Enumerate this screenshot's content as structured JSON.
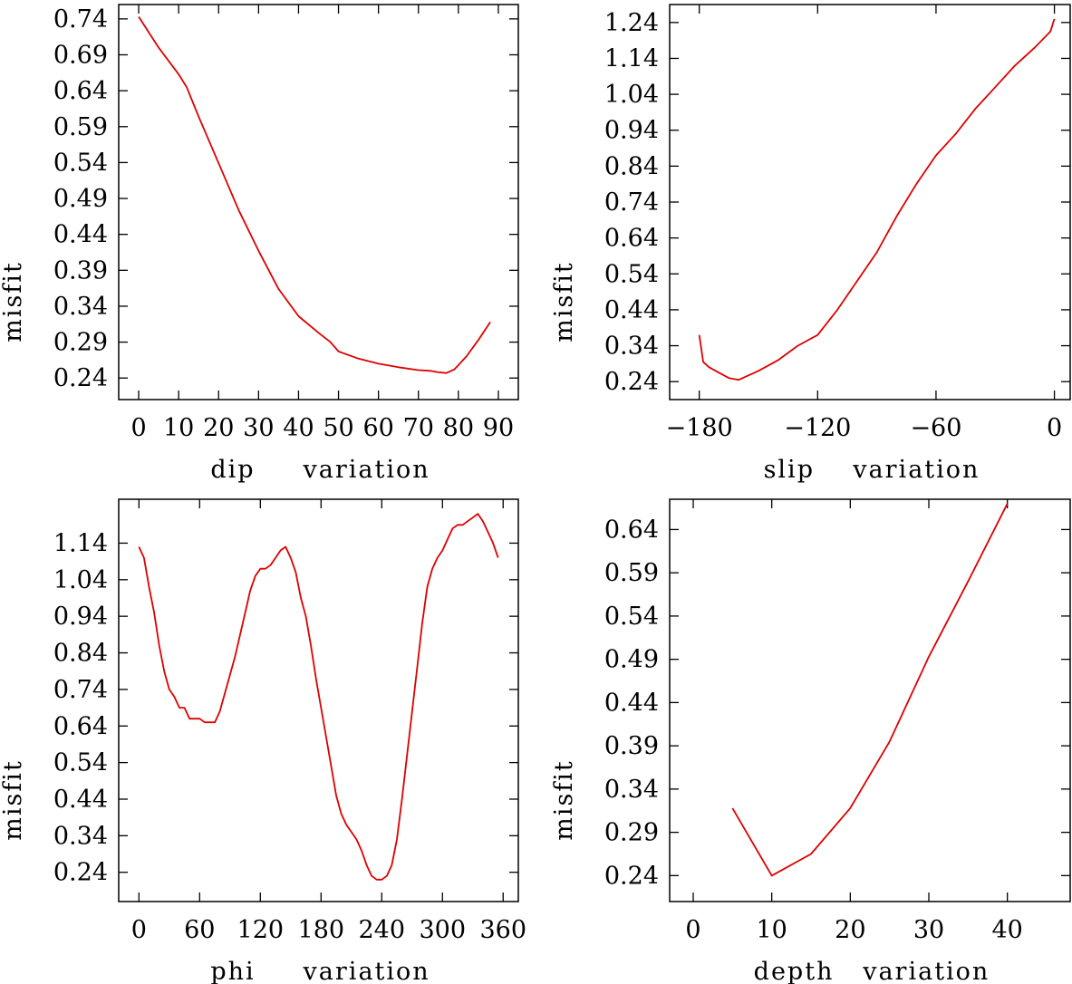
{
  "chart_data": [
    {
      "type": "line",
      "xlabel": "dip     variation",
      "ylabel": "misfit",
      "xlim": [
        -5,
        95
      ],
      "ylim": [
        0.21,
        0.76
      ],
      "xticks": [
        0,
        10,
        20,
        30,
        40,
        50,
        60,
        70,
        80,
        90
      ],
      "yticks": [
        0.24,
        0.29,
        0.34,
        0.39,
        0.44,
        0.49,
        0.54,
        0.59,
        0.64,
        0.69,
        0.74
      ],
      "color": "#dd0000",
      "x": [
        0,
        5,
        10,
        12,
        15,
        20,
        25,
        30,
        35,
        40,
        45,
        48,
        50,
        55,
        60,
        65,
        70,
        73,
        75,
        77,
        79,
        82,
        85,
        88
      ],
      "y": [
        0.743,
        0.7,
        0.663,
        0.645,
        0.604,
        0.539,
        0.474,
        0.417,
        0.364,
        0.326,
        0.303,
        0.29,
        0.277,
        0.267,
        0.26,
        0.255,
        0.251,
        0.25,
        0.248,
        0.247,
        0.252,
        0.27,
        0.293,
        0.318
      ]
    },
    {
      "type": "line",
      "xlabel": "slip    variation",
      "ylabel": "misfit",
      "xlim": [
        -195,
        8
      ],
      "ylim": [
        0.19,
        1.29
      ],
      "xticks": [
        -180,
        -120,
        -60,
        0
      ],
      "xtick_labels": [
        "−180",
        "−120",
        "−60",
        "0"
      ],
      "yticks": [
        0.24,
        0.34,
        0.44,
        0.54,
        0.64,
        0.74,
        0.84,
        0.94,
        1.04,
        1.14,
        1.24
      ],
      "color": "#dd0000",
      "x": [
        -180,
        -178,
        -175,
        -170,
        -165,
        -160,
        -150,
        -140,
        -130,
        -120,
        -110,
        -100,
        -90,
        -80,
        -70,
        -60,
        -50,
        -40,
        -30,
        -20,
        -10,
        -2,
        0
      ],
      "y": [
        0.37,
        0.295,
        0.28,
        0.265,
        0.25,
        0.245,
        0.27,
        0.3,
        0.34,
        0.37,
        0.44,
        0.52,
        0.6,
        0.7,
        0.79,
        0.87,
        0.93,
        1.0,
        1.06,
        1.12,
        1.17,
        1.215,
        1.25
      ]
    },
    {
      "type": "line",
      "xlabel": "phi     variation",
      "ylabel": "misfit",
      "xlim": [
        -20,
        375
      ],
      "ylim": [
        0.16,
        1.26
      ],
      "xticks": [
        0,
        60,
        120,
        180,
        240,
        300,
        360
      ],
      "yticks": [
        0.24,
        0.34,
        0.44,
        0.54,
        0.64,
        0.74,
        0.84,
        0.94,
        1.04,
        1.14
      ],
      "color": "#dd0000",
      "x": [
        0,
        5,
        10,
        15,
        20,
        25,
        30,
        35,
        40,
        45,
        50,
        55,
        60,
        65,
        70,
        75,
        80,
        85,
        90,
        95,
        100,
        105,
        110,
        115,
        120,
        125,
        130,
        135,
        140,
        145,
        150,
        155,
        160,
        165,
        170,
        175,
        180,
        185,
        190,
        195,
        200,
        205,
        210,
        215,
        220,
        225,
        230,
        235,
        240,
        245,
        250,
        255,
        260,
        265,
        270,
        275,
        280,
        285,
        290,
        295,
        300,
        305,
        310,
        315,
        320,
        325,
        330,
        335,
        340,
        345,
        350,
        355
      ],
      "y": [
        1.13,
        1.1,
        1.02,
        0.95,
        0.86,
        0.79,
        0.74,
        0.72,
        0.69,
        0.69,
        0.66,
        0.66,
        0.66,
        0.65,
        0.65,
        0.65,
        0.68,
        0.73,
        0.78,
        0.83,
        0.89,
        0.95,
        1.01,
        1.05,
        1.07,
        1.07,
        1.08,
        1.1,
        1.12,
        1.13,
        1.1,
        1.06,
        0.99,
        0.94,
        0.86,
        0.77,
        0.69,
        0.61,
        0.53,
        0.45,
        0.4,
        0.37,
        0.35,
        0.33,
        0.3,
        0.26,
        0.23,
        0.22,
        0.22,
        0.23,
        0.26,
        0.33,
        0.44,
        0.56,
        0.68,
        0.8,
        0.92,
        1.02,
        1.07,
        1.1,
        1.12,
        1.15,
        1.18,
        1.19,
        1.19,
        1.2,
        1.21,
        1.22,
        1.2,
        1.17,
        1.14,
        1.1
      ]
    },
    {
      "type": "line",
      "xlabel": "depth   variation",
      "ylabel": "misfit",
      "xlim": [
        -3,
        48
      ],
      "ylim": [
        0.21,
        0.675
      ],
      "xticks": [
        0,
        10,
        20,
        30,
        40
      ],
      "yticks": [
        0.24,
        0.29,
        0.34,
        0.39,
        0.44,
        0.49,
        0.54,
        0.59,
        0.64
      ],
      "color": "#dd0000",
      "x": [
        5,
        10,
        15,
        20,
        25,
        30,
        35,
        40
      ],
      "y": [
        0.318,
        0.24,
        0.265,
        0.318,
        0.395,
        0.493,
        0.58,
        0.67
      ]
    }
  ]
}
